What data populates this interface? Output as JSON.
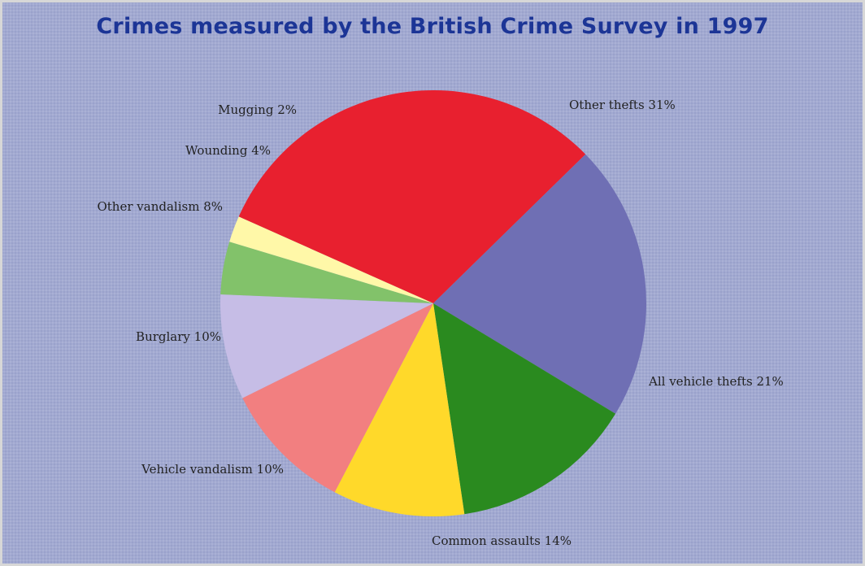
{
  "chart_data": {
    "type": "pie",
    "title": "Crimes measured by the British Crime Survey in 1997",
    "slices": [
      {
        "label": "Other thefts 31%",
        "value": 31,
        "color": "#e8202f"
      },
      {
        "label": "All vehicle thefts 21%",
        "value": 21,
        "color": "#6f6fb4"
      },
      {
        "label": "Common assaults 14%",
        "value": 14,
        "color": "#2a8a1f"
      },
      {
        "label": "Vehicle vandalism 10%",
        "value": 10,
        "color": "#ffd92a"
      },
      {
        "label": "Burglary 10%",
        "value": 10,
        "color": "#f27f80"
      },
      {
        "label": "Other vandalism 8%",
        "value": 8,
        "color": "#c6bde6"
      },
      {
        "label": "Wounding 4%",
        "value": 4,
        "color": "#82c26a"
      },
      {
        "label": "Mugging 2%",
        "value": 2,
        "color": "#fff8a8"
      }
    ],
    "legend": "none"
  }
}
